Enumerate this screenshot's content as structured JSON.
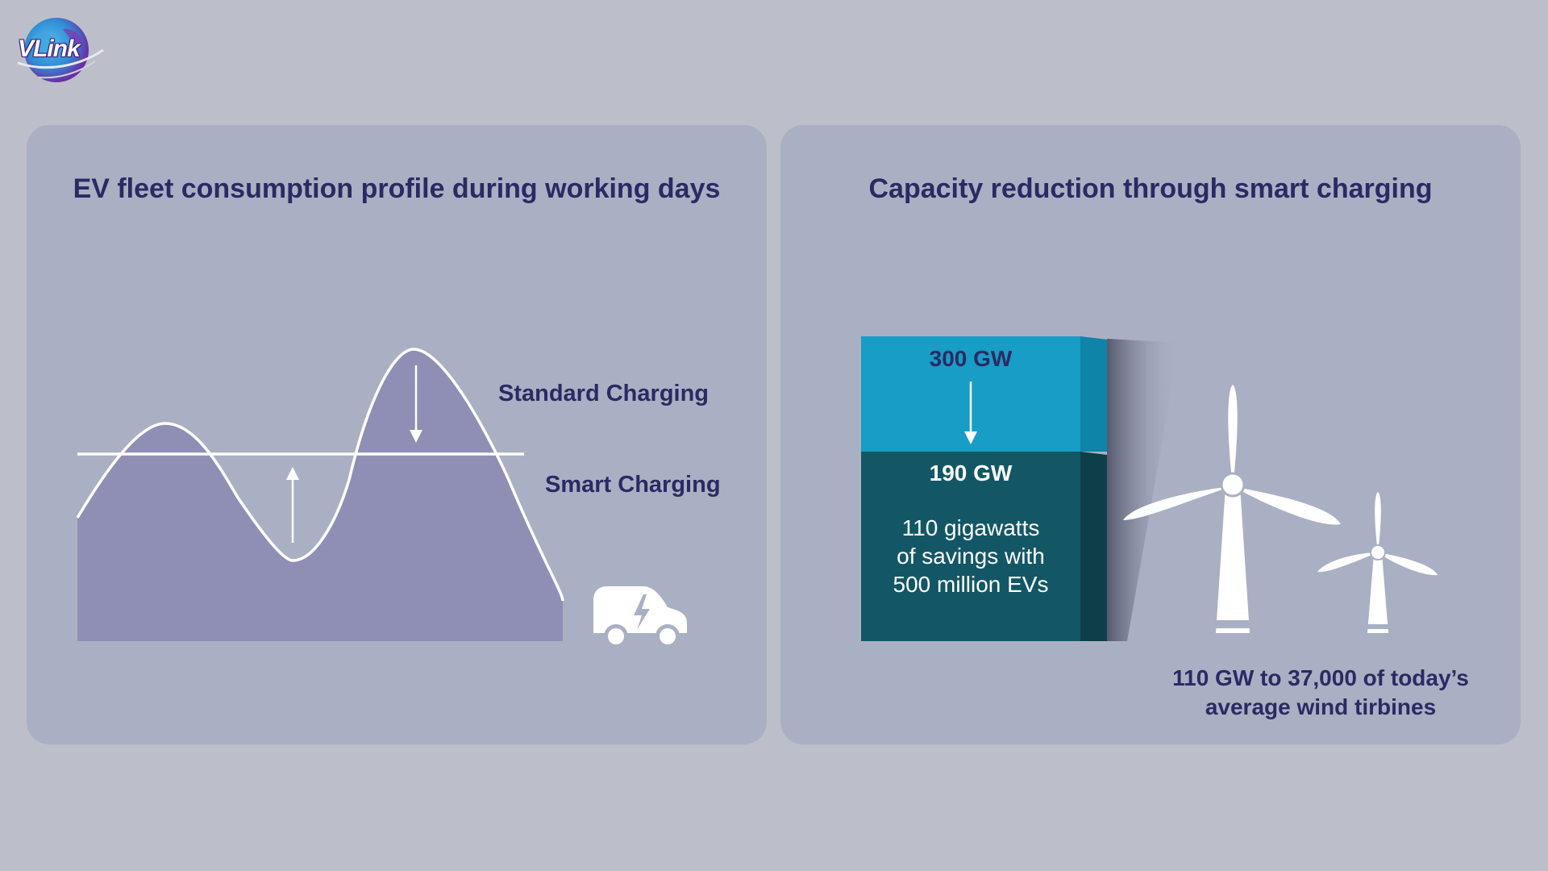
{
  "brand": {
    "logo_text": "VLink",
    "logo_colors": {
      "globe_blue": "#2f8fd6",
      "globe_purple": "#6a2fa3",
      "text_outline": "#3c1a7a"
    }
  },
  "colors": {
    "background": "#bcbfca",
    "card": "#aab0c3",
    "title_text": "#2b2a63",
    "area_fill": "#8f8fb5",
    "curve_line": "#ffffff",
    "bar_top": "#179dc6",
    "bar_top_side": "#0e84a8",
    "bar_bottom": "#135766",
    "bar_bottom_side": "#0d3e4a"
  },
  "left_panel": {
    "title": "EV fleet consumption profile during working days",
    "standard_label": "Standard Charging",
    "smart_label": "Smart Charging",
    "icon": "electric-van-icon"
  },
  "right_panel": {
    "title": "Capacity reduction through smart charging",
    "top_value": "300 GW",
    "bottom_value": "190 GW",
    "savings_lines": [
      "110 gigawatts",
      "of savings with",
      "500 million EVs"
    ],
    "icon": "wind-turbine-icon",
    "turbine_caption_lines": [
      "110 GW to 37,000 of today’s",
      "average wind tirbines"
    ]
  }
}
